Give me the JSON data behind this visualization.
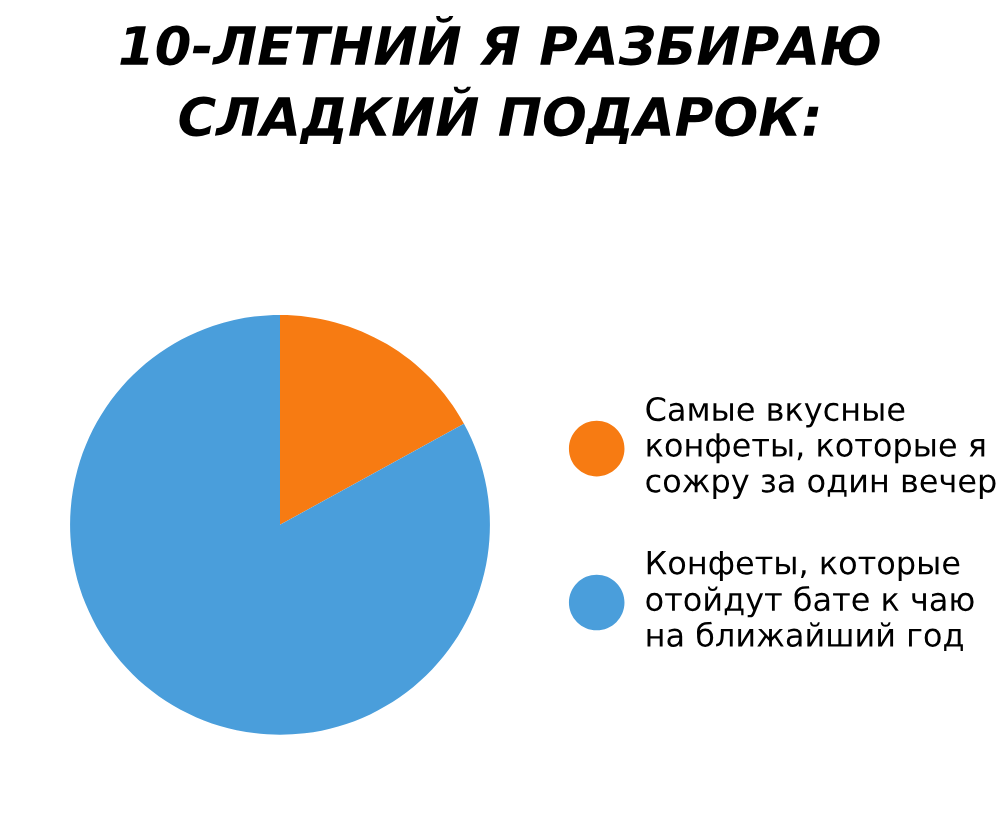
{
  "chart_data": {
    "type": "pie",
    "title": "10-ЛЕТНИЙ Я РАЗБИРАЮ\nСЛАДКИЙ ПОДАРОК:",
    "categories": [
      "Самые вкусные\nконфеты, которые я\nсожру за один вечер",
      "Конфеты, которые\nотойдут бате к чаю\nна ближайший год"
    ],
    "values": [
      17,
      83
    ],
    "colors": [
      "#f77b12",
      "#4a9edb"
    ],
    "legend": "right"
  }
}
